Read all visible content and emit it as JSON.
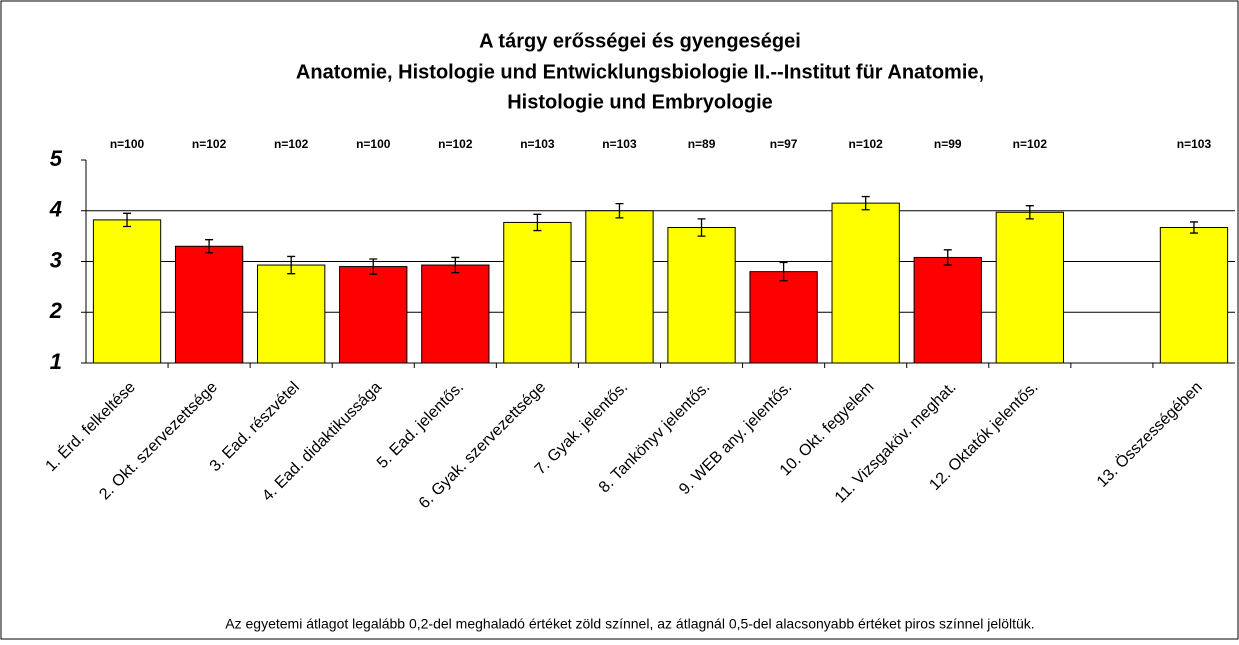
{
  "chart_data": {
    "type": "bar",
    "title": [
      "A tárgy erősségei és gyengeségei",
      "Anatomie, Histologie und Entwicklungsbiologie II.--Institut für Anatomie,",
      "Histologie und Embryologie"
    ],
    "categories": [
      "1. Érd. felkeltése",
      "2. Okt. szervezettsége",
      "3. Ead. részvétel",
      "4. Ead. didaktikussága",
      "5. Ead. jelentős.",
      "6. Gyak. szervezettsége",
      "7. Gyak. jelentős.",
      "8. Tankönyv jelentős.",
      "9. WEB any. jelentős.",
      "10. Okt. fegyelem",
      "11. Vizsgaköv. meghat.",
      "12. Oktatók jelentős.",
      null,
      "13. Összességében"
    ],
    "values": [
      3.82,
      3.3,
      2.93,
      2.9,
      2.93,
      3.77,
      4.0,
      3.67,
      2.8,
      4.15,
      3.08,
      3.97,
      null,
      3.67
    ],
    "errors": [
      0.13,
      0.13,
      0.17,
      0.15,
      0.15,
      0.16,
      0.14,
      0.17,
      0.18,
      0.13,
      0.15,
      0.13,
      null,
      0.11
    ],
    "colors": [
      "#ffff00",
      "#ff0000",
      "#ffff00",
      "#ff0000",
      "#ff0000",
      "#ffff00",
      "#ffff00",
      "#ffff00",
      "#ff0000",
      "#ffff00",
      "#ff0000",
      "#ffff00",
      null,
      "#ffff00"
    ],
    "n_labels": [
      "n=100",
      "n=102",
      "n=102",
      "n=100",
      "n=102",
      "n=103",
      "n=103",
      "n=89",
      "n=97",
      "n=102",
      "n=99",
      "n=102",
      null,
      "n=103"
    ],
    "ylim": [
      1,
      5
    ],
    "yticks": [
      1,
      2,
      3,
      4,
      5
    ],
    "grid": true,
    "footnote": "Az egyetemi átlagot legalább 0,2-del meghaladó értéket zöld színnel, az átlagnál 0,5-del alacsonyabb értéket piros színnel jelöltük."
  }
}
